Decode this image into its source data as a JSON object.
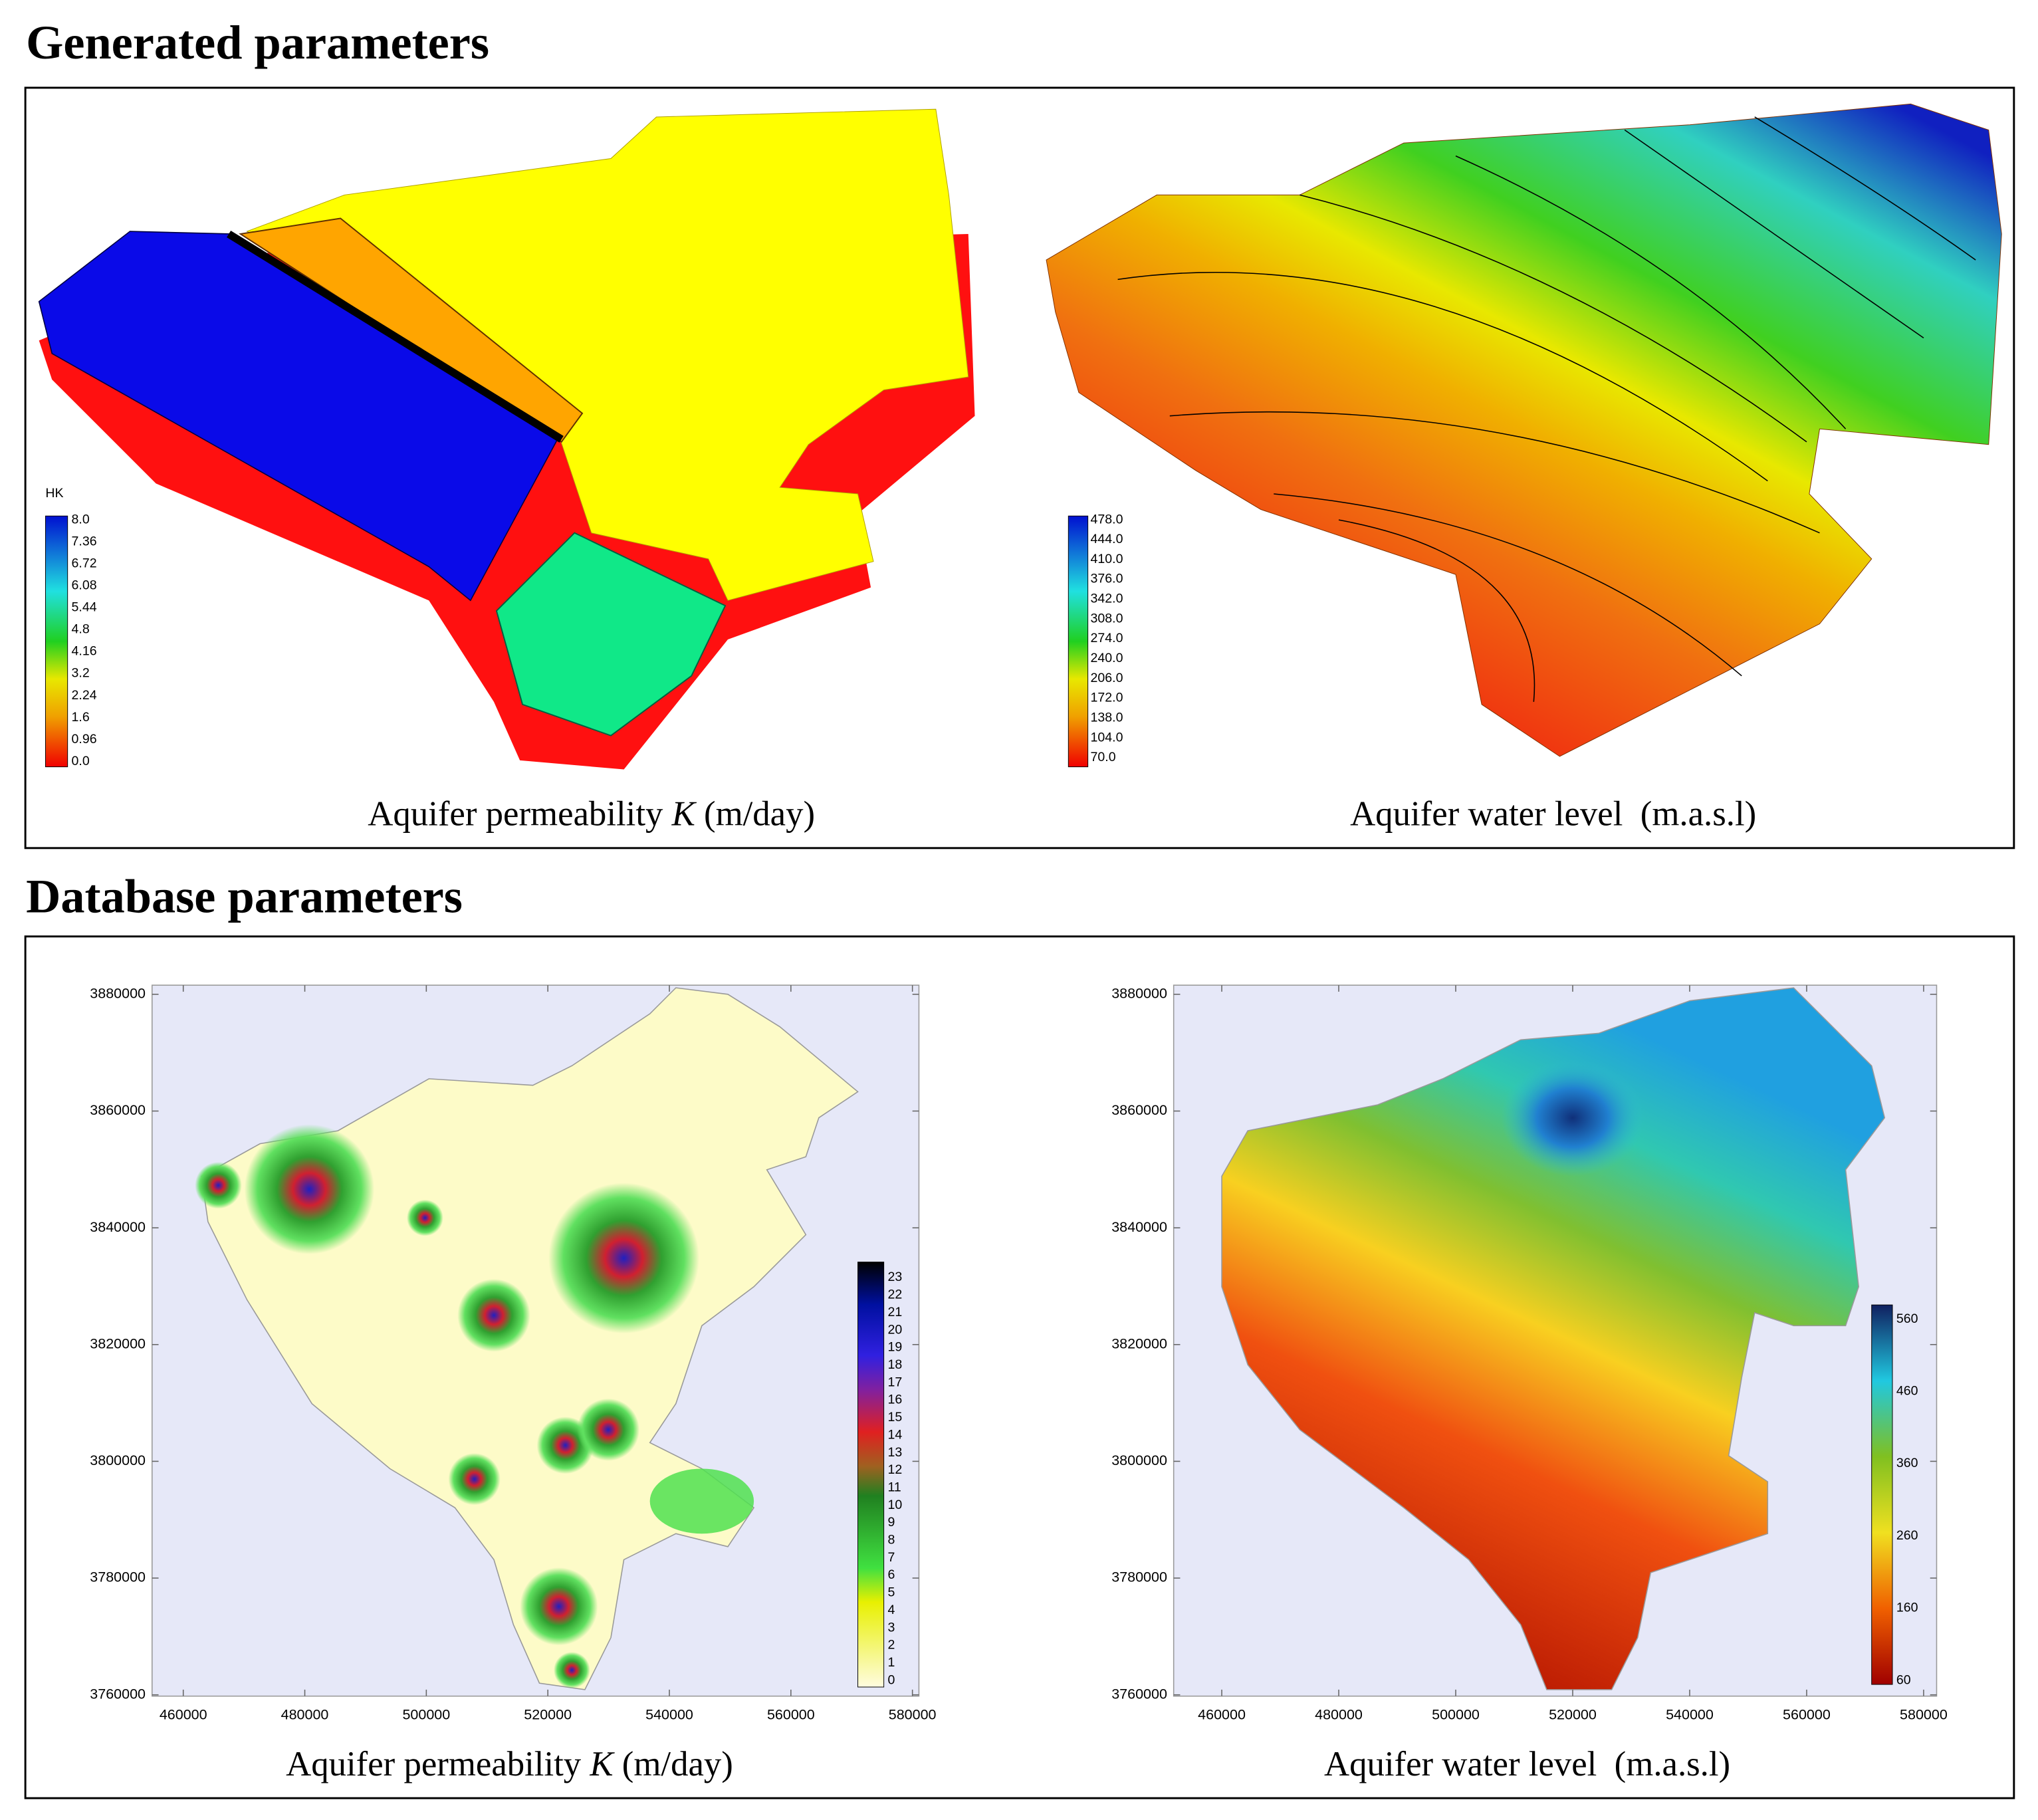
{
  "sections": [
    {
      "title": "Generated parameters",
      "panels": [
        {
          "caption": [
            "Aquifer permeability ",
            "K",
            " (m/day)"
          ],
          "legend": {
            "title": "HK",
            "labels": [
              "8.0",
              "7.36",
              "6.72",
              "6.08",
              "5.44",
              "4.8",
              "4.16",
              "3.2",
              "2.24",
              "1.6",
              "0.96",
              "0.0"
            ]
          }
        },
        {
          "caption": [
            "Aquifer water level  (m.a.s.l)"
          ],
          "legend": {
            "labels": [
              "478.0",
              "444.0",
              "410.0",
              "376.0",
              "342.0",
              "308.0",
              "274.0",
              "240.0",
              "206.0",
              "172.0",
              "138.0",
              "104.0",
              "70.0"
            ]
          }
        }
      ]
    },
    {
      "title": "Database parameters",
      "panels": [
        {
          "caption": [
            "Aquifer permeability ",
            "K",
            " (m/day)"
          ],
          "yticks": [
            "3880000",
            "3860000",
            "3840000",
            "3820000",
            "3800000",
            "3780000",
            "3760000"
          ],
          "xticks": [
            "460000",
            "480000",
            "500000",
            "520000",
            "540000",
            "560000",
            "580000"
          ],
          "legend": {
            "labels": [
              "23",
              "22",
              "21",
              "20",
              "19",
              "18",
              "17",
              "16",
              "15",
              "14",
              "13",
              "12",
              "11",
              "10",
              "9",
              "8",
              "7",
              "6",
              "5",
              "4",
              "3",
              "2",
              "1",
              "0"
            ]
          }
        },
        {
          "caption": [
            "Aquifer water level  (m.a.s.l)"
          ],
          "yticks": [
            "3880000",
            "3860000",
            "3840000",
            "3820000",
            "3800000",
            "3780000",
            "3760000"
          ],
          "xticks": [
            "460000",
            "480000",
            "500000",
            "520000",
            "540000",
            "560000",
            "580000"
          ],
          "legend": {
            "labels": [
              "560",
              "460",
              "360",
              "260",
              "160",
              "60"
            ]
          }
        }
      ]
    }
  ]
}
